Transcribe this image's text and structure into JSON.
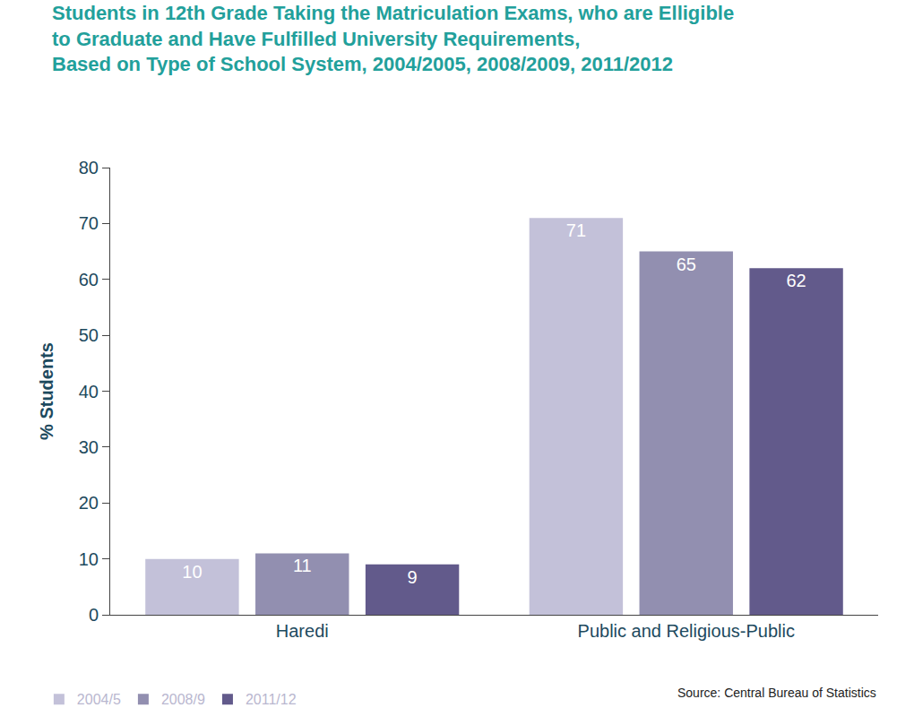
{
  "chart_data": {
    "type": "bar",
    "title": "Students in 12th Grade Taking the Matriculation Exams, who are Elligible\nto Graduate and Have Fulfilled University Requirements,\nBased on Type of School System, 2004/2005, 2008/2009, 2011/2012",
    "y_label": "% Students",
    "source": "Source: Central Bureau of Statistics",
    "categories": [
      "Haredi",
      "Public and Religious-Public"
    ],
    "series": [
      {
        "name": "2004/5",
        "color": "#c3c1d9",
        "values": [
          10,
          71
        ]
      },
      {
        "name": "2008/9",
        "color": "#928fb0",
        "values": [
          11,
          65
        ]
      },
      {
        "name": "2011/12",
        "color": "#625a8b",
        "values": [
          9,
          62
        ]
      }
    ],
    "ylim": [
      0,
      80
    ],
    "yticks": [
      0,
      10,
      20,
      30,
      40,
      50,
      60,
      70,
      80
    ],
    "grid": false,
    "data_labels": true,
    "legend": "bottom left"
  }
}
